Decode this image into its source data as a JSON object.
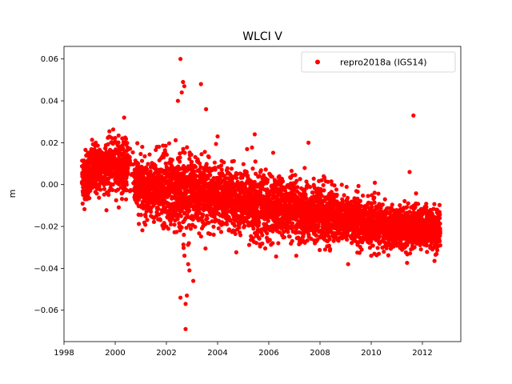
{
  "chart_data": {
    "type": "scatter",
    "title": "WLCI V",
    "xlabel": "",
    "ylabel": "m",
    "xlim": [
      1998,
      2013.5
    ],
    "ylim": [
      -0.075,
      0.066
    ],
    "xticks": [
      1998,
      2000,
      2002,
      2004,
      2006,
      2008,
      2010,
      2012
    ],
    "xtick_labels": [
      "1998",
      "2000",
      "2002",
      "2004",
      "2006",
      "2008",
      "2010",
      "2012"
    ],
    "yticks": [
      -0.06,
      -0.04,
      -0.02,
      0.0,
      0.02,
      0.04,
      0.06
    ],
    "ytick_labels": [
      "−0.06",
      "−0.04",
      "−0.02",
      "0.00",
      "0.02",
      "0.04",
      "0.06"
    ],
    "grid": false,
    "legend_position": "top-right",
    "series": [
      {
        "name": "repro2018a (IGS14)",
        "color": "#ff0000",
        "marker": "circle",
        "trend": [
          [
            1998.7,
            0.003
          ],
          [
            1999.0,
            0.006
          ],
          [
            1999.5,
            0.008
          ],
          [
            2000.0,
            0.01
          ],
          [
            2000.5,
            0.008
          ],
          [
            2001.0,
            -0.002
          ],
          [
            2001.5,
            -0.003
          ],
          [
            2002.0,
            -0.003
          ],
          [
            2002.5,
            -0.004
          ],
          [
            2003.0,
            -0.003
          ],
          [
            2003.5,
            -0.004
          ],
          [
            2004.0,
            -0.006
          ],
          [
            2005.0,
            -0.008
          ],
          [
            2006.0,
            -0.01
          ],
          [
            2007.0,
            -0.013
          ],
          [
            2008.0,
            -0.014
          ],
          [
            2009.0,
            -0.016
          ],
          [
            2010.0,
            -0.019
          ],
          [
            2011.0,
            -0.02
          ],
          [
            2012.0,
            -0.021
          ],
          [
            2012.7,
            -0.021
          ]
        ],
        "scatter_sd": [
          [
            1998.7,
            0.006
          ],
          [
            2000.5,
            0.006
          ],
          [
            2001.5,
            0.007
          ],
          [
            2002.0,
            0.009
          ],
          [
            2003.2,
            0.009
          ],
          [
            2004.0,
            0.007
          ],
          [
            2005.5,
            0.008
          ],
          [
            2007.0,
            0.007
          ],
          [
            2009.0,
            0.006
          ],
          [
            2010.5,
            0.005
          ],
          [
            2012.7,
            0.005
          ]
        ],
        "outliers": [
          [
            2002.55,
            0.06
          ],
          [
            2002.65,
            0.049
          ],
          [
            2002.7,
            0.047
          ],
          [
            2003.35,
            0.048
          ],
          [
            2003.55,
            0.036
          ],
          [
            2002.45,
            0.04
          ],
          [
            2002.6,
            0.044
          ],
          [
            2000.35,
            0.032
          ],
          [
            2011.65,
            0.033
          ],
          [
            2011.5,
            0.006
          ],
          [
            2007.55,
            0.02
          ],
          [
            2005.45,
            0.024
          ],
          [
            2002.55,
            -0.054
          ],
          [
            2002.75,
            -0.057
          ],
          [
            2002.8,
            -0.053
          ],
          [
            2002.75,
            -0.069
          ],
          [
            2003.05,
            -0.046
          ],
          [
            2002.9,
            -0.041
          ],
          [
            2002.85,
            -0.038
          ],
          [
            2009.1,
            -0.038
          ],
          [
            2010.0,
            -0.034
          ],
          [
            2008.2,
            -0.031
          ],
          [
            2007.8,
            -0.028
          ],
          [
            2004.0,
            0.023
          ]
        ]
      }
    ]
  }
}
